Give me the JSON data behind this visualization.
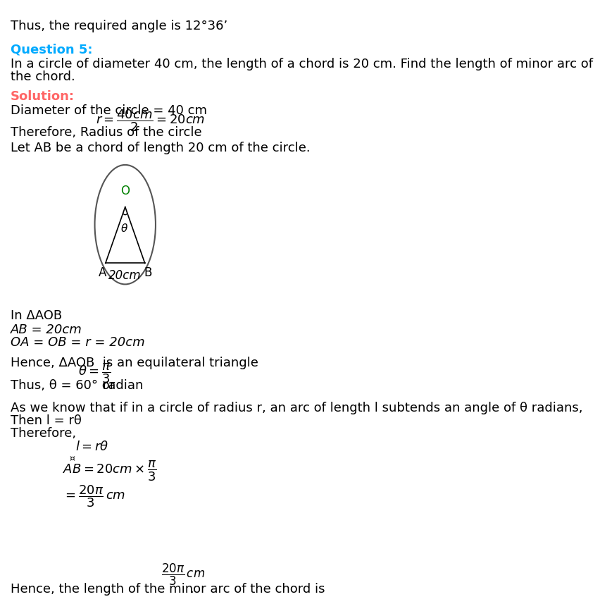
{
  "bg_color": "#ffffff",
  "text_color": "#000000",
  "question_color": "#00aaff",
  "solution_color": "#ff6666",
  "green_color": "#008000",
  "line1": "Thus, the required angle is 12°36’",
  "question_label": "Question 5:",
  "question_text1": "In a circle of diameter 40 cm, the length of a chord is 20 cm. Find the length of minor arc of",
  "question_text2": "the chord.",
  "solution_label": "Solution:",
  "sol_line1": "Diameter of the circle = 40 cm",
  "sol_line2_prefix": "Therefore, Radius of the circle",
  "sol_line3": "Let AB be a chord of length 20 cm of the circle.",
  "triangle_line1": "In ΔAOB",
  "triangle_line2": "AB = 20cm",
  "triangle_line3": "OA = OB = r = 20cm",
  "hence_line": "Hence, ΔAOB  is an equilateral triangle",
  "thus_line_prefix": "Thus, θ = 60° or",
  "thus_line_suffix": " radian",
  "as_we_know": "As we know that if in a circle of radius r, an arc of length l subtends an angle of θ radians,",
  "then_line": "Then l = rθ",
  "therefore_line": "Therefore,",
  "eq1": "l = rθ",
  "eq2_prefix": "AB = 20cm ×",
  "eq3": "= ",
  "final_line": "Hence, the length of the minor arc of the chord is"
}
